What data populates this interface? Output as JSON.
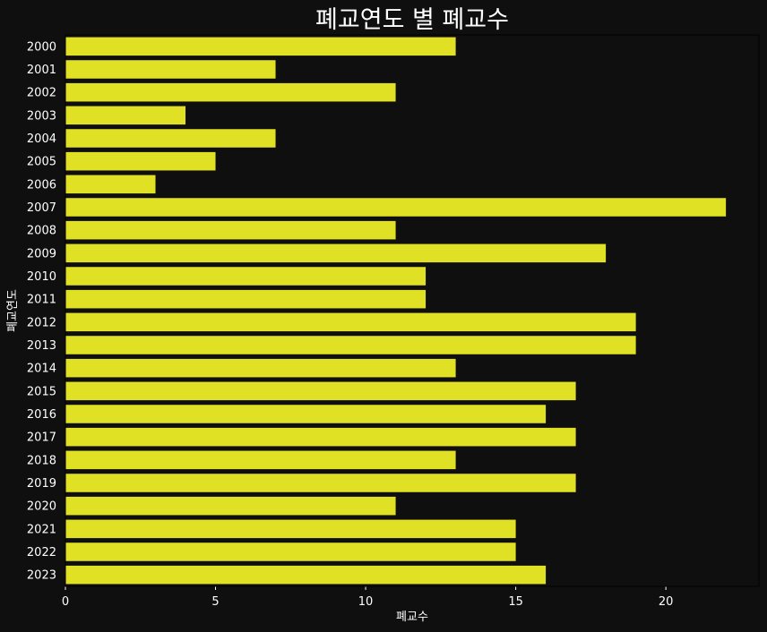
{
  "chart_data": {
    "type": "bar",
    "orientation": "horizontal",
    "title": "폐교연도 별 폐교수",
    "xlabel": "폐교수",
    "ylabel": "폐교연도",
    "categories": [
      "2000",
      "2001",
      "2002",
      "2003",
      "2004",
      "2005",
      "2006",
      "2007",
      "2008",
      "2009",
      "2010",
      "2011",
      "2012",
      "2013",
      "2014",
      "2015",
      "2016",
      "2017",
      "2018",
      "2019",
      "2020",
      "2021",
      "2022",
      "2023"
    ],
    "values": [
      13,
      7,
      11,
      4,
      7,
      5,
      3,
      22,
      11,
      18,
      12,
      12,
      19,
      19,
      13,
      17,
      16,
      17,
      13,
      17,
      11,
      15,
      15,
      16
    ],
    "xlim": [
      0,
      23.1
    ],
    "xticks": [
      0,
      5,
      10,
      15,
      20
    ],
    "grid": false,
    "bar_color": "#e0e024",
    "background_color": "#0f0f0f",
    "text_color": "#ffffff"
  }
}
